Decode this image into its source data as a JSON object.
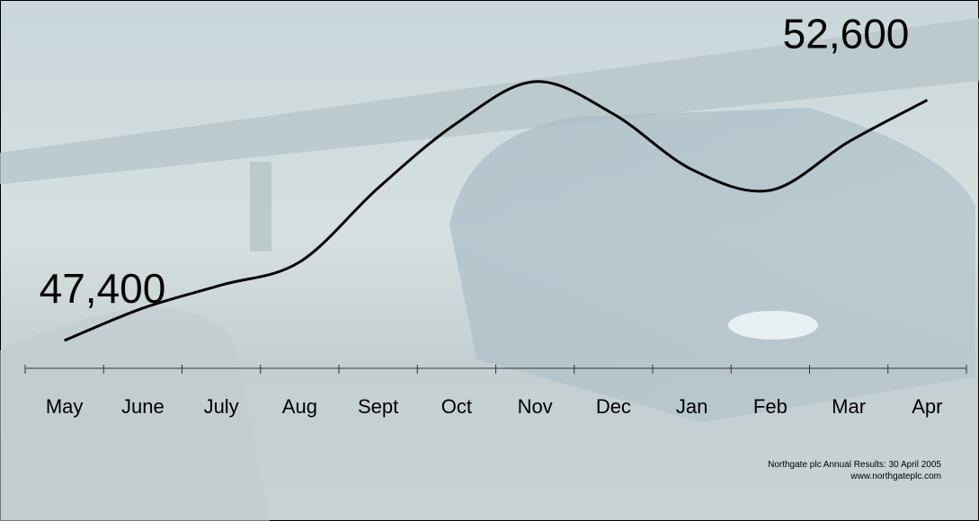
{
  "chart_data": {
    "type": "line",
    "categories": [
      "May",
      "June",
      "July",
      "Aug",
      "Sept",
      "Oct",
      "Nov",
      "Dec",
      "Jan",
      "Feb",
      "Mar",
      "Apr"
    ],
    "series": [
      {
        "color": "#000000",
        "values": [
          47400,
          48100,
          48600,
          49100,
          50700,
          52100,
          53000,
          52300,
          51100,
          50650,
          51700,
          52600
        ],
        "value_labels": [
          "47,400",
          null,
          null,
          null,
          null,
          null,
          null,
          null,
          null,
          null,
          null,
          "52,600"
        ]
      }
    ],
    "ylim": [
      46800,
      53600
    ],
    "footer": [
      "Northgate plc Annual Results: 30 April 2005",
      "www.northgateplc.com"
    ]
  }
}
